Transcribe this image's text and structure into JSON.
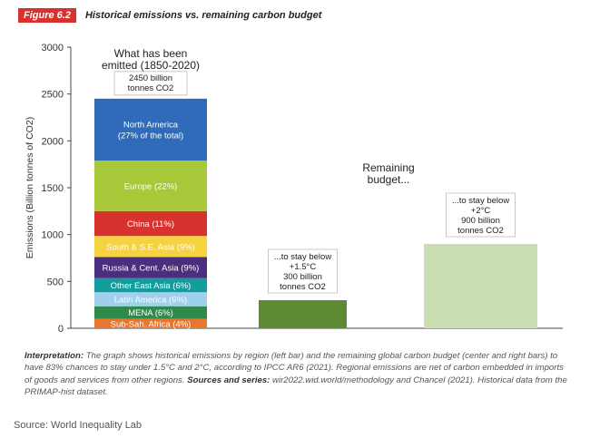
{
  "header": {
    "figure_label": "Figure 6.2",
    "figure_title": "Historical emissions vs. remaining carbon budget"
  },
  "chart_data": {
    "type": "bar",
    "ylabel": "Emissions (Billion tonnes of CO2)",
    "ylim": [
      0,
      3000
    ],
    "yticks": [
      0,
      500,
      1000,
      1500,
      2000,
      2500,
      3000
    ],
    "grid": false,
    "stacked_bar": {
      "heading": [
        "What has been",
        "emitted (1850-2020)"
      ],
      "total_label": [
        "2450 billion",
        "tonnes CO2"
      ],
      "segments": [
        {
          "label": "Sub-Sah. Africa (4%)",
          "value": 100,
          "color": "#e8762e"
        },
        {
          "label": "MENA (6%)",
          "value": 135,
          "color": "#2e8a4a"
        },
        {
          "label": "Latin America (6%)",
          "value": 150,
          "color": "#9fd0ec"
        },
        {
          "label": "Other East Asia (6%)",
          "value": 150,
          "color": "#129c9c"
        },
        {
          "label": "Russia & Cent. Asia (9%)",
          "value": 225,
          "color": "#4a2f7e"
        },
        {
          "label": "South & S.E. Asia (9%)",
          "value": 225,
          "color": "#f5d242"
        },
        {
          "label": "China (11%)",
          "value": 265,
          "color": "#d8322f"
        },
        {
          "label": "Europe (22%)",
          "value": 540,
          "color": "#a8c83a"
        },
        {
          "label": "North America\n(27% of the total)",
          "value": 660,
          "color": "#2f6bb8"
        }
      ]
    },
    "remaining": {
      "heading": [
        "Remaining",
        "budget..."
      ],
      "bars": [
        {
          "value": 300,
          "color": "#5e8a36",
          "label": [
            "...to stay below",
            "+1.5°C",
            "300 billion",
            "tonnes CO2"
          ]
        },
        {
          "value": 900,
          "color": "#c9deb0",
          "label": [
            "...to stay below",
            "+2°C",
            "900 billion",
            "tonnes CO2"
          ]
        }
      ]
    }
  },
  "notes": {
    "interpretation_title": "Interpretation:",
    "interpretation_text": " The graph shows historical emissions by region (left bar) and the remaining global carbon budget (center and right bars) to have 83% chances to stay under 1.5°C and 2°C, according to IPCC AR6 (2021). Regional emissions are net of carbon embedded in imports of goods and services from other regions. ",
    "sources_title": "Sources and series:",
    "sources_text": " wir2022.wid.world/methodology and Chancel (2021). Historical data from the PRIMAP-hist dataset."
  },
  "footer": {
    "source": "Source: World Inequality Lab"
  }
}
